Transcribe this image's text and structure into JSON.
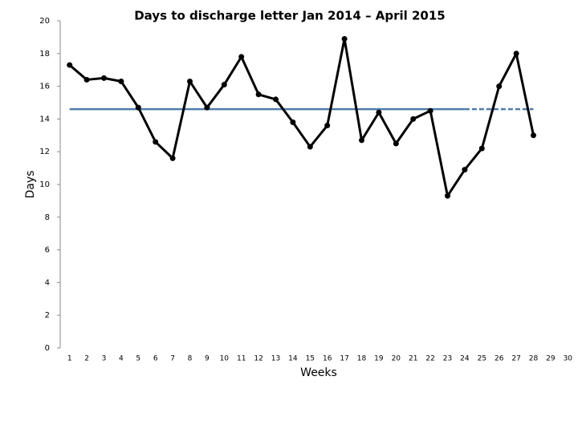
{
  "chart_data": {
    "type": "line",
    "title": "Days to discharge letter Jan 2014 – April 2015",
    "x_label": "Weeks",
    "y_label": "Days",
    "categories": [
      "1",
      "2",
      "3",
      "4",
      "5",
      "6",
      "7",
      "8",
      "9",
      "10",
      "11",
      "12",
      "13",
      "14",
      "15",
      "16",
      "17",
      "18",
      "19",
      "20",
      "21",
      "22",
      "23",
      "24",
      "25",
      "26",
      "27",
      "28",
      "29",
      "30"
    ],
    "series": [
      {
        "color": "#4f7cac",
        "dashed": false,
        "markers": false,
        "values": [
          14.6,
          14.6,
          14.6,
          14.6,
          14.6,
          14.6,
          14.6,
          14.6,
          14.6,
          14.6,
          14.6,
          14.6,
          14.6,
          14.6,
          14.6,
          14.6,
          14.6,
          14.6,
          14.6,
          14.6,
          14.6,
          14.6,
          14.6,
          14.6,
          null,
          null,
          null,
          null,
          null,
          null
        ]
      },
      {
        "color": "#4f7cac",
        "dashed": true,
        "markers": false,
        "values": [
          null,
          null,
          null,
          null,
          null,
          null,
          null,
          null,
          null,
          null,
          null,
          null,
          null,
          null,
          null,
          null,
          null,
          null,
          null,
          null,
          null,
          null,
          null,
          14.6,
          14.6,
          14.6,
          14.6,
          14.6,
          null,
          null
        ]
      },
      {
        "color": "#000000",
        "dashed": false,
        "markers": true,
        "values": [
          17.3,
          16.4,
          16.5,
          16.3,
          14.7,
          12.6,
          11.6,
          16.3,
          14.7,
          16.1,
          17.8,
          15.5,
          15.2,
          13.8,
          12.3,
          13.6,
          18.9,
          12.7,
          14.4,
          12.5,
          14.0,
          14.5,
          9.3,
          10.9,
          12.2,
          16.0,
          18.0,
          13.0,
          null,
          null
        ]
      }
    ],
    "ylim": [
      0,
      20
    ],
    "yticks": [
      0,
      2,
      4,
      6,
      8,
      10,
      12,
      14,
      16,
      18,
      20
    ],
    "grid": false
  }
}
